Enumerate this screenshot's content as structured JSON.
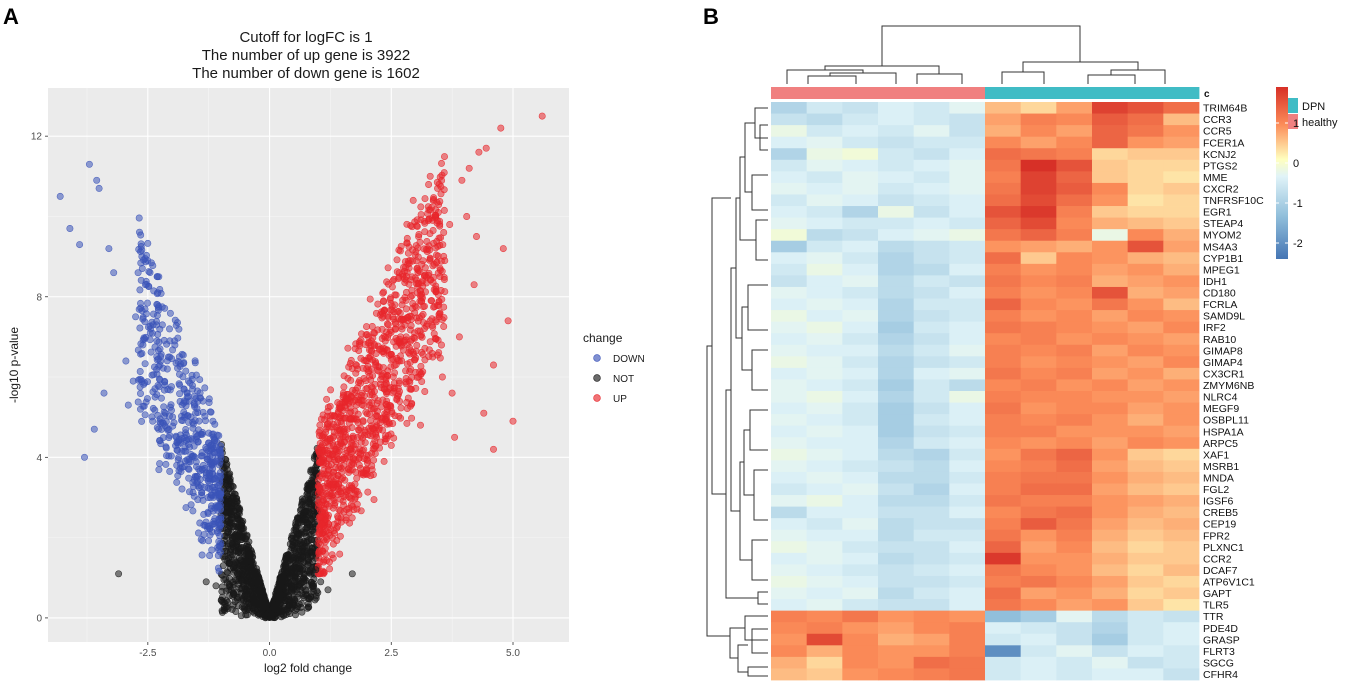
{
  "panels": {
    "a": "A",
    "b": "B"
  },
  "chart_data": [
    {
      "type": "scatter",
      "subtype": "volcano",
      "title": [
        "Cutoff for logFC is 1",
        "The number of up gene is 3922",
        "The number of down gene is 1602"
      ],
      "xlabel": "log2 fold change",
      "ylabel": "-log10 p-value",
      "xlim": [
        -4.55,
        6.15
      ],
      "ylim": [
        -0.6,
        13.2
      ],
      "xticks": [
        -2.5,
        0,
        2.5,
        5
      ],
      "xtick_labels": [
        "-2.5",
        "0.0",
        "2.5",
        "5.0"
      ],
      "yticks": [
        0,
        4,
        8,
        12
      ],
      "ytick_labels": [
        "0",
        "4",
        "8",
        "12"
      ],
      "grid": true,
      "logfc_cutoff": 1,
      "up_count": 3922,
      "down_count": 1602,
      "legend": {
        "title": "change",
        "position": "right",
        "entries": [
          {
            "label": "DOWN",
            "color": "#3B53B8"
          },
          {
            "label": "NOT",
            "color": "#1a1a1a"
          },
          {
            "label": "UP",
            "color": "#E8262B"
          }
        ]
      },
      "series": [
        {
          "name": "DOWN",
          "color": "#3B53B8",
          "x": [
            -4.3,
            -4.1,
            -3.7,
            -3.55,
            -3.5,
            -3.3,
            -3.9,
            -3.2,
            -3.8,
            -2.5,
            -2.55,
            -2.7,
            -2.3,
            -2.2,
            -2.95,
            -2.8,
            -2.6,
            -2.75,
            -2.9,
            -3.6,
            -3.4,
            -2.1,
            -2.45,
            -2.25,
            -2.15,
            -2.35,
            -2.05,
            -1.95,
            -2.4,
            -2.65
          ],
          "y": [
            10.5,
            9.7,
            11.3,
            10.9,
            10.7,
            9.2,
            9.3,
            8.6,
            4,
            8.9,
            8.3,
            8.6,
            7.8,
            7.3,
            6.4,
            5.9,
            6.8,
            7.5,
            5.3,
            4.7,
            5.6,
            6.2,
            7.1,
            6.7,
            5.8,
            5.5,
            6.5,
            6.9,
            4.9,
            5.2
          ],
          "envelope_note": "dense cloud between log2FC -2.7 and -1.0 with height rising toward more negative fold change"
        },
        {
          "name": "NOT",
          "color": "#1a1a1a",
          "x": [
            -3.1,
            1.7,
            -1.1,
            1.05,
            -0.95,
            0.95,
            1.2,
            -1.3
          ],
          "y": [
            1.1,
            1.1,
            0.8,
            0.9,
            1.3,
            1.2,
            0.7,
            0.9
          ],
          "envelope_note": "dense V-shaped black cloud for |log2FC| < 1"
        },
        {
          "name": "UP",
          "color": "#E8262B",
          "x": [
            5.6,
            4.75,
            4.45,
            4.3,
            4.1,
            3.95,
            4.8,
            4.9,
            5.0,
            4.2,
            4.6,
            3.8,
            3.35,
            3.45,
            3.6,
            3.7,
            4.4,
            4.6,
            3.9,
            3.3,
            4.05,
            4.25,
            3.15,
            3.5,
            2.9,
            2.7,
            3.75,
            3.1,
            2.95,
            3.55
          ],
          "y": [
            12.5,
            12.2,
            11.7,
            11.6,
            11.2,
            10.9,
            9.2,
            7.4,
            4.9,
            8.3,
            6.3,
            4.5,
            6.5,
            10.7,
            8.9,
            9.8,
            5.1,
            4.2,
            7.0,
            11.0,
            10.0,
            9.5,
            8.4,
            7.6,
            8.0,
            6.8,
            5.6,
            4.8,
            10.4,
            6.0
          ],
          "envelope_note": "dense cloud between log2FC 1.0 and 3.7 with height rising toward more positive fold change"
        }
      ]
    },
    {
      "type": "heatmap",
      "subtype": "clustered",
      "annotation_label": "c",
      "groups": [
        {
          "name": "healthy",
          "color": "#F08080",
          "columns": 6
        },
        {
          "name": "DPN",
          "color": "#40BCC5",
          "columns": 6
        }
      ],
      "legend": {
        "annotation": {
          "title": "c",
          "entries": [
            "DPN",
            "healthy"
          ]
        },
        "colorbar": {
          "ticks": [
            1,
            0,
            -1,
            -2
          ],
          "tick_labels": [
            "1",
            "0",
            "-1",
            "-2"
          ],
          "range": [
            -2.4,
            1.9
          ]
        }
      },
      "colors": {
        "low": "#4575B4",
        "mid": "#FFFFBF",
        "high": "#D73027"
      },
      "genes": [
        "TRIM64B",
        "CCR3",
        "CCR5",
        "FCER1A",
        "KCNJ2",
        "PTGS2",
        "MME",
        "CXCR2",
        "TNFRSF10C",
        "EGR1",
        "STEAP4",
        "MYOM2",
        "MS4A3",
        "CYP1B1",
        "MPEG1",
        "IDH1",
        "CD180",
        "FCRLA",
        "SAMD9L",
        "IRF2",
        "RAB10",
        "GIMAP8",
        "GIMAP4",
        "CX3CR1",
        "ZMYM6NB",
        "NLRC4",
        "MEGF9",
        "OSBPL11",
        "HSPA1A",
        "ARPC5",
        "XAF1",
        "MSRB1",
        "MNDA",
        "FGL2",
        "IGSF6",
        "CREB5",
        "CEP19",
        "FPR2",
        "PLXNC1",
        "CCR2",
        "DCAF7",
        "ATP6V1C1",
        "GAPT",
        "TLR5",
        "TTR",
        "PDE4D",
        "GRASP",
        "FLRT3",
        "SGCG",
        "CFHR4"
      ],
      "matrix": [
        [
          -0.9,
          -0.6,
          -0.7,
          -0.5,
          -0.6,
          -0.4,
          0.5,
          0.3,
          0.7,
          1.7,
          1.5,
          1.2
        ],
        [
          -0.7,
          -0.8,
          -0.6,
          -0.5,
          -0.6,
          -0.7,
          0.7,
          1.0,
          0.9,
          1.4,
          1.2,
          0.5
        ],
        [
          -0.3,
          -0.6,
          -0.5,
          -0.6,
          -0.4,
          -0.7,
          0.6,
          0.9,
          0.7,
          1.3,
          1.1,
          0.8
        ],
        [
          -0.5,
          -0.4,
          -0.6,
          -0.7,
          -0.6,
          -0.6,
          0.9,
          0.7,
          0.9,
          1.3,
          0.8,
          0.7
        ],
        [
          -0.9,
          -0.3,
          -0.2,
          -0.6,
          -0.7,
          -0.5,
          1.2,
          1.1,
          1.0,
          0.3,
          0.4,
          0.4
        ],
        [
          -0.6,
          -0.4,
          -0.5,
          -0.6,
          -0.5,
          -0.4,
          1.1,
          1.9,
          1.5,
          0.4,
          0.3,
          0.3
        ],
        [
          -0.5,
          -0.6,
          -0.4,
          -0.5,
          -0.6,
          -0.4,
          1.0,
          1.7,
          1.3,
          0.4,
          0.3,
          0.2
        ],
        [
          -0.4,
          -0.5,
          -0.4,
          -0.6,
          -0.5,
          -0.4,
          1.1,
          1.7,
          1.4,
          0.9,
          0.3,
          0.4
        ],
        [
          -0.6,
          -0.4,
          -0.5,
          -0.7,
          -0.6,
          -0.5,
          1.2,
          1.6,
          1.2,
          0.8,
          0.2,
          0.3
        ],
        [
          -0.5,
          -0.6,
          -0.9,
          -0.3,
          -0.7,
          -0.5,
          1.5,
          1.8,
          1.0,
          0.4,
          0.3,
          0.3
        ],
        [
          -0.4,
          -0.5,
          -0.6,
          -0.6,
          -0.5,
          -0.6,
          1.3,
          1.6,
          0.9,
          0.6,
          0.5,
          0.4
        ],
        [
          -0.2,
          -0.8,
          -0.7,
          -0.5,
          -0.4,
          -0.3,
          1.1,
          1.3,
          1.0,
          -0.3,
          0.9,
          0.6
        ],
        [
          -1.0,
          -0.6,
          -0.5,
          -0.8,
          -0.7,
          -0.6,
          0.8,
          0.7,
          0.6,
          0.8,
          1.5,
          0.7
        ],
        [
          -0.5,
          -0.4,
          -0.6,
          -0.9,
          -0.7,
          -0.6,
          1.2,
          0.4,
          0.9,
          0.8,
          0.6,
          0.5
        ],
        [
          -0.6,
          -0.3,
          -0.5,
          -0.9,
          -0.8,
          -0.5,
          1.0,
          0.8,
          0.9,
          0.7,
          0.8,
          0.6
        ],
        [
          -0.7,
          -0.5,
          -0.4,
          -0.8,
          -0.6,
          -0.7,
          1.1,
          0.9,
          1.0,
          0.6,
          0.7,
          0.8
        ],
        [
          -0.4,
          -0.5,
          -0.6,
          -0.8,
          -0.7,
          -0.5,
          1.0,
          0.8,
          0.9,
          1.5,
          0.6,
          0.7
        ],
        [
          -0.5,
          -0.4,
          -0.5,
          -0.9,
          -0.6,
          -0.6,
          1.3,
          0.9,
          0.8,
          1.1,
          0.8,
          0.5
        ],
        [
          -0.3,
          -0.5,
          -0.4,
          -0.9,
          -0.7,
          -0.6,
          1.0,
          0.8,
          0.9,
          0.7,
          0.9,
          0.8
        ],
        [
          -0.4,
          -0.3,
          -0.5,
          -1.0,
          -0.6,
          -0.5,
          1.1,
          1.0,
          0.9,
          0.8,
          0.7,
          0.9
        ],
        [
          -0.5,
          -0.4,
          -0.6,
          -0.9,
          -0.7,
          -0.5,
          0.9,
          1.0,
          0.8,
          0.9,
          0.8,
          0.7
        ],
        [
          -0.4,
          -0.5,
          -0.5,
          -0.8,
          -0.6,
          -0.4,
          1.0,
          0.9,
          1.0,
          0.7,
          0.9,
          0.8
        ],
        [
          -0.3,
          -0.4,
          -0.6,
          -0.9,
          -0.7,
          -0.6,
          1.0,
          0.8,
          0.9,
          0.8,
          0.7,
          0.9
        ],
        [
          -0.5,
          -0.4,
          -0.5,
          -0.9,
          -0.5,
          -0.4,
          1.1,
          0.9,
          1.0,
          0.7,
          0.8,
          0.6
        ],
        [
          -0.4,
          -0.5,
          -0.6,
          -1.0,
          -0.6,
          -0.8,
          0.9,
          1.0,
          0.8,
          0.9,
          0.7,
          0.8
        ],
        [
          -0.4,
          -0.3,
          -0.5,
          -0.9,
          -0.6,
          -0.3,
          1.0,
          0.9,
          0.9,
          0.8,
          0.8,
          0.7
        ],
        [
          -0.5,
          -0.4,
          -0.6,
          -1.0,
          -0.7,
          -0.5,
          1.1,
          0.8,
          0.9,
          0.9,
          0.7,
          0.8
        ],
        [
          -0.4,
          -0.5,
          -0.6,
          -1.0,
          -0.6,
          -0.5,
          1.0,
          0.9,
          1.0,
          0.8,
          0.6,
          0.8
        ],
        [
          -0.5,
          -0.4,
          -0.5,
          -1.0,
          -0.7,
          -0.6,
          1.0,
          1.0,
          0.8,
          0.8,
          0.8,
          0.7
        ],
        [
          -0.4,
          -0.5,
          -0.5,
          -0.9,
          -0.6,
          -0.5,
          0.9,
          0.8,
          0.9,
          0.7,
          0.9,
          0.8
        ],
        [
          -0.3,
          -0.4,
          -0.5,
          -0.8,
          -0.9,
          -0.6,
          0.8,
          1.1,
          1.3,
          0.8,
          0.4,
          0.3
        ],
        [
          -0.4,
          -0.5,
          -0.6,
          -0.7,
          -0.8,
          -0.5,
          0.9,
          1.0,
          1.2,
          0.7,
          0.5,
          0.4
        ],
        [
          -0.5,
          -0.4,
          -0.5,
          -0.8,
          -0.8,
          -0.6,
          1.0,
          1.1,
          1.1,
          0.8,
          0.6,
          0.5
        ],
        [
          -0.6,
          -0.5,
          -0.4,
          -0.7,
          -0.9,
          -0.5,
          1.0,
          1.2,
          1.2,
          0.7,
          0.5,
          0.4
        ],
        [
          -0.4,
          -0.3,
          -0.5,
          -0.8,
          -0.8,
          -0.6,
          1.1,
          1.0,
          1.0,
          0.8,
          0.7,
          0.6
        ],
        [
          -0.8,
          -0.5,
          -0.5,
          -0.7,
          -0.7,
          -0.5,
          0.9,
          1.1,
          1.2,
          0.8,
          0.6,
          0.5
        ],
        [
          -0.5,
          -0.6,
          -0.4,
          -0.8,
          -0.7,
          -0.7,
          1.0,
          1.4,
          1.1,
          0.7,
          0.5,
          0.6
        ],
        [
          -0.4,
          -0.5,
          -0.5,
          -0.8,
          -0.6,
          -0.6,
          1.1,
          0.8,
          1.0,
          0.6,
          0.4,
          0.5
        ],
        [
          -0.3,
          -0.4,
          -0.6,
          -0.7,
          -0.7,
          -0.5,
          1.3,
          0.7,
          0.9,
          0.5,
          0.3,
          0.4
        ],
        [
          -0.5,
          -0.4,
          -0.5,
          -0.8,
          -0.7,
          -0.6,
          1.8,
          0.8,
          0.8,
          0.6,
          0.4,
          0.4
        ],
        [
          -0.4,
          -0.5,
          -0.6,
          -0.7,
          -0.6,
          -0.5,
          1.1,
          0.9,
          0.8,
          0.5,
          0.3,
          0.5
        ],
        [
          -0.3,
          -0.4,
          -0.5,
          -0.7,
          -0.7,
          -0.6,
          1.0,
          1.1,
          0.9,
          0.7,
          0.4,
          0.3
        ],
        [
          -0.4,
          -0.5,
          -0.4,
          -0.8,
          -0.6,
          -0.5,
          1.2,
          0.7,
          0.8,
          0.6,
          0.3,
          0.4
        ],
        [
          -0.5,
          -0.4,
          -0.6,
          -0.7,
          -0.7,
          -0.5,
          1.1,
          0.9,
          0.7,
          0.8,
          0.4,
          0.2
        ],
        [
          1.0,
          0.9,
          1.1,
          0.8,
          0.9,
          0.8,
          -1.2,
          -1.0,
          -0.4,
          -0.8,
          -0.6,
          -0.7
        ],
        [
          0.9,
          1.0,
          0.8,
          0.7,
          0.9,
          1.0,
          -0.5,
          -0.6,
          -0.7,
          -0.9,
          -0.6,
          -0.5
        ],
        [
          0.8,
          1.6,
          0.9,
          0.6,
          0.7,
          1.0,
          -0.6,
          -0.5,
          -0.7,
          -1.0,
          -0.6,
          -0.5
        ],
        [
          0.9,
          0.6,
          0.9,
          0.8,
          0.8,
          1.0,
          -2.0,
          -0.6,
          -0.4,
          -0.7,
          -0.5,
          -0.6
        ],
        [
          0.6,
          0.3,
          0.9,
          0.8,
          1.2,
          1.1,
          -0.6,
          -0.5,
          -0.6,
          -0.4,
          -0.7,
          -0.6
        ],
        [
          0.5,
          0.4,
          0.8,
          0.9,
          1.0,
          1.1,
          -0.6,
          -0.5,
          -0.6,
          -0.5,
          -0.5,
          -0.7
        ]
      ]
    }
  ]
}
